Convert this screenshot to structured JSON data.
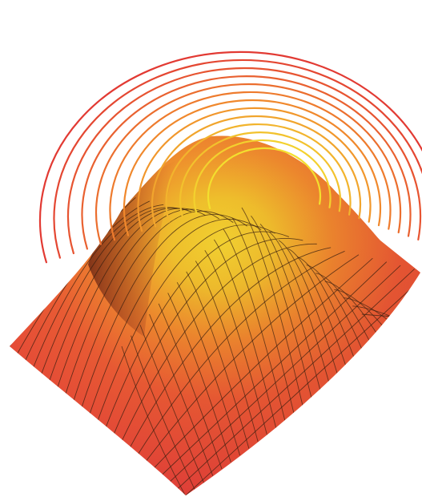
{
  "figure": {
    "subject": "3d-surface-peak-with-contour-arcs",
    "colors": {
      "surface_base": "#e8453c",
      "surface_mid": "#f08a2a",
      "surface_peak": "#f2e62a",
      "shadow": "#7a2f14",
      "mesh_line": "#3a1f10",
      "contour_outer": "#e23a33",
      "contour_mid": "#f0882c",
      "contour_inner": "#f3df2e"
    },
    "contour_count": 13
  }
}
